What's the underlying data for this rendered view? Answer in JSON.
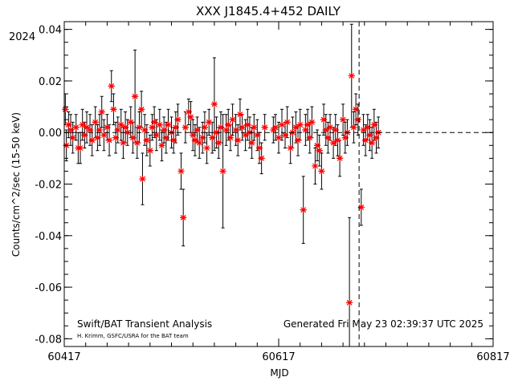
{
  "chart_data": {
    "type": "scatter",
    "title": "XXX J1845.4+452 DAILY",
    "xlabel": "MJD",
    "ylabel": "Counts/cm^2/sec (15-50 keV)",
    "year_label": "2024",
    "xlim": [
      60417,
      60817
    ],
    "ylim": [
      -0.083,
      0.043
    ],
    "xticks_major": [
      60417,
      60617,
      60817
    ],
    "xticks_major_labels": [
      "60417",
      "60617",
      "60817"
    ],
    "yticks_major": [
      -0.08,
      -0.06,
      -0.04,
      -0.02,
      0.0,
      0.02,
      0.04
    ],
    "yticks_major_labels": [
      "-0.08",
      "-0.06",
      "-0.04",
      "-0.02",
      "0.00",
      "0.02",
      "0.04"
    ],
    "reference_line_y": 0.0,
    "marker_line_x": 60692,
    "grid": false,
    "legend": "none",
    "colors": {
      "points": "#ff0000",
      "errorbars": "#000000",
      "axes": "#000000"
    },
    "footer_left": "Swift/BAT Transient Analysis",
    "footer_credit": "H. Krimm, GSFC/USRA for the BAT team",
    "footer_right": "Generated Fri May 23 02:39:37 UTC 2025",
    "points": [
      {
        "x": 60418,
        "y": 0.009,
        "err": 0.006
      },
      {
        "x": 60419,
        "y": -0.005,
        "err": 0.006
      },
      {
        "x": 60421,
        "y": 0.003,
        "err": 0.005
      },
      {
        "x": 60423,
        "y": 0.001,
        "err": 0.006
      },
      {
        "x": 60425,
        "y": -0.002,
        "err": 0.006
      },
      {
        "x": 60428,
        "y": 0.002,
        "err": 0.005
      },
      {
        "x": 60430,
        "y": -0.006,
        "err": 0.006
      },
      {
        "x": 60432,
        "y": -0.006,
        "err": 0.006
      },
      {
        "x": 60434,
        "y": 0.003,
        "err": 0.006
      },
      {
        "x": 60436,
        "y": -0.001,
        "err": 0.005
      },
      {
        "x": 60438,
        "y": 0.002,
        "err": 0.006
      },
      {
        "x": 60441,
        "y": 0.001,
        "err": 0.006
      },
      {
        "x": 60443,
        "y": -0.003,
        "err": 0.006
      },
      {
        "x": 60446,
        "y": 0.004,
        "err": 0.006
      },
      {
        "x": 60448,
        "y": -0.002,
        "err": 0.005
      },
      {
        "x": 60450,
        "y": 0.001,
        "err": 0.006
      },
      {
        "x": 60452,
        "y": 0.008,
        "err": 0.006
      },
      {
        "x": 60454,
        "y": -0.001,
        "err": 0.006
      },
      {
        "x": 60457,
        "y": 0.002,
        "err": 0.005
      },
      {
        "x": 60459,
        "y": -0.003,
        "err": 0.006
      },
      {
        "x": 60461,
        "y": 0.018,
        "err": 0.006
      },
      {
        "x": 60463,
        "y": 0.009,
        "err": 0.006
      },
      {
        "x": 60465,
        "y": -0.002,
        "err": 0.006
      },
      {
        "x": 60467,
        "y": 0.001,
        "err": 0.005
      },
      {
        "x": 60470,
        "y": 0.003,
        "err": 0.006
      },
      {
        "x": 60472,
        "y": -0.004,
        "err": 0.006
      },
      {
        "x": 60474,
        "y": 0.002,
        "err": 0.006
      },
      {
        "x": 60476,
        "y": 0.0,
        "err": 0.005
      },
      {
        "x": 60479,
        "y": 0.004,
        "err": 0.006
      },
      {
        "x": 60481,
        "y": -0.002,
        "err": 0.006
      },
      {
        "x": 60483,
        "y": 0.014,
        "err": 0.018
      },
      {
        "x": 60485,
        "y": -0.004,
        "err": 0.006
      },
      {
        "x": 60487,
        "y": 0.002,
        "err": 0.006
      },
      {
        "x": 60489,
        "y": 0.009,
        "err": 0.007
      },
      {
        "x": 60490,
        "y": -0.018,
        "err": 0.01
      },
      {
        "x": 60492,
        "y": 0.001,
        "err": 0.006
      },
      {
        "x": 60494,
        "y": -0.003,
        "err": 0.006
      },
      {
        "x": 60497,
        "y": -0.007,
        "err": 0.006
      },
      {
        "x": 60499,
        "y": 0.002,
        "err": 0.005
      },
      {
        "x": 60501,
        "y": 0.004,
        "err": 0.006
      },
      {
        "x": 60503,
        "y": -0.001,
        "err": 0.006
      },
      {
        "x": 60506,
        "y": 0.003,
        "err": 0.006
      },
      {
        "x": 60508,
        "y": -0.005,
        "err": 0.006
      },
      {
        "x": 60510,
        "y": 0.001,
        "err": 0.005
      },
      {
        "x": 60512,
        "y": -0.002,
        "err": 0.006
      },
      {
        "x": 60514,
        "y": 0.003,
        "err": 0.006
      },
      {
        "x": 60517,
        "y": 0.0,
        "err": 0.006
      },
      {
        "x": 60519,
        "y": -0.003,
        "err": 0.005
      },
      {
        "x": 60521,
        "y": 0.002,
        "err": 0.006
      },
      {
        "x": 60523,
        "y": 0.005,
        "err": 0.006
      },
      {
        "x": 60526,
        "y": -0.015,
        "err": 0.007
      },
      {
        "x": 60528,
        "y": -0.033,
        "err": 0.011
      },
      {
        "x": 60530,
        "y": 0.002,
        "err": 0.006
      },
      {
        "x": 60533,
        "y": 0.008,
        "err": 0.005
      },
      {
        "x": 60535,
        "y": 0.006,
        "err": 0.006
      },
      {
        "x": 60537,
        "y": -0.001,
        "err": 0.006
      },
      {
        "x": 60539,
        "y": -0.003,
        "err": 0.006
      },
      {
        "x": 60541,
        "y": 0.001,
        "err": 0.005
      },
      {
        "x": 60543,
        "y": -0.004,
        "err": 0.006
      },
      {
        "x": 60546,
        "y": -0.002,
        "err": 0.006
      },
      {
        "x": 60548,
        "y": 0.002,
        "err": 0.006
      },
      {
        "x": 60550,
        "y": -0.006,
        "err": 0.006
      },
      {
        "x": 60552,
        "y": 0.004,
        "err": 0.005
      },
      {
        "x": 60555,
        "y": -0.002,
        "err": 0.006
      },
      {
        "x": 60557,
        "y": 0.011,
        "err": 0.018
      },
      {
        "x": 60559,
        "y": 0.0,
        "err": 0.006
      },
      {
        "x": 60561,
        "y": -0.004,
        "err": 0.006
      },
      {
        "x": 60563,
        "y": 0.002,
        "err": 0.006
      },
      {
        "x": 60565,
        "y": -0.015,
        "err": 0.022
      },
      {
        "x": 60568,
        "y": 0.001,
        "err": 0.006
      },
      {
        "x": 60570,
        "y": 0.003,
        "err": 0.006
      },
      {
        "x": 60572,
        "y": -0.002,
        "err": 0.005
      },
      {
        "x": 60574,
        "y": 0.005,
        "err": 0.006
      },
      {
        "x": 60577,
        "y": 0.001,
        "err": 0.006
      },
      {
        "x": 60579,
        "y": -0.003,
        "err": 0.006
      },
      {
        "x": 60581,
        "y": 0.007,
        "err": 0.006
      },
      {
        "x": 60583,
        "y": 0.002,
        "err": 0.005
      },
      {
        "x": 60586,
        "y": -0.001,
        "err": 0.006
      },
      {
        "x": 60588,
        "y": 0.003,
        "err": 0.006
      },
      {
        "x": 60590,
        "y": 0.0,
        "err": 0.006
      },
      {
        "x": 60592,
        "y": -0.004,
        "err": 0.006
      },
      {
        "x": 60594,
        "y": 0.002,
        "err": 0.005
      },
      {
        "x": 60597,
        "y": -0.001,
        "err": 0.006
      },
      {
        "x": 60599,
        "y": -0.006,
        "err": 0.006
      },
      {
        "x": 60601,
        "y": -0.01,
        "err": 0.006
      },
      {
        "x": 60604,
        "y": 0.002,
        "err": 0.005
      },
      {
        "x": 60612,
        "y": 0.001,
        "err": 0.005
      },
      {
        "x": 60614,
        "y": 0.002,
        "err": 0.005
      },
      {
        "x": 60617,
        "y": -0.002,
        "err": 0.006
      },
      {
        "x": 60620,
        "y": 0.003,
        "err": 0.006
      },
      {
        "x": 60623,
        "y": -0.001,
        "err": 0.005
      },
      {
        "x": 60625,
        "y": 0.004,
        "err": 0.006
      },
      {
        "x": 60628,
        "y": -0.006,
        "err": 0.006
      },
      {
        "x": 60630,
        "y": 0.0,
        "err": 0.006
      },
      {
        "x": 60633,
        "y": 0.002,
        "err": 0.006
      },
      {
        "x": 60635,
        "y": -0.003,
        "err": 0.006
      },
      {
        "x": 60637,
        "y": 0.003,
        "err": 0.006
      },
      {
        "x": 60640,
        "y": -0.03,
        "err": 0.013
      },
      {
        "x": 60642,
        "y": 0.001,
        "err": 0.006
      },
      {
        "x": 60644,
        "y": 0.003,
        "err": 0.006
      },
      {
        "x": 60646,
        "y": -0.002,
        "err": 0.006
      },
      {
        "x": 60648,
        "y": 0.004,
        "err": 0.006
      },
      {
        "x": 60651,
        "y": -0.013,
        "err": 0.007
      },
      {
        "x": 60653,
        "y": -0.005,
        "err": 0.006
      },
      {
        "x": 60655,
        "y": -0.007,
        "err": 0.006
      },
      {
        "x": 60657,
        "y": -0.015,
        "err": 0.007
      },
      {
        "x": 60659,
        "y": 0.005,
        "err": 0.006
      },
      {
        "x": 60661,
        "y": 0.001,
        "err": 0.006
      },
      {
        "x": 60663,
        "y": -0.002,
        "err": 0.006
      },
      {
        "x": 60665,
        "y": 0.002,
        "err": 0.005
      },
      {
        "x": 60668,
        "y": -0.004,
        "err": 0.006
      },
      {
        "x": 60670,
        "y": 0.001,
        "err": 0.006
      },
      {
        "x": 60672,
        "y": -0.003,
        "err": 0.006
      },
      {
        "x": 60674,
        "y": -0.01,
        "err": 0.007
      },
      {
        "x": 60677,
        "y": 0.005,
        "err": 0.006
      },
      {
        "x": 60679,
        "y": -0.002,
        "err": 0.006
      },
      {
        "x": 60681,
        "y": 0.0,
        "err": 0.005
      },
      {
        "x": 60683,
        "y": -0.066,
        "err": 0.033
      },
      {
        "x": 60685,
        "y": 0.022,
        "err": 0.02
      },
      {
        "x": 60687,
        "y": 0.002,
        "err": 0.006
      },
      {
        "x": 60689,
        "y": 0.009,
        "err": 0.006
      },
      {
        "x": 60691,
        "y": 0.005,
        "err": 0.006
      },
      {
        "x": 60694,
        "y": -0.029,
        "err": 0.007
      },
      {
        "x": 60696,
        "y": 0.001,
        "err": 0.006
      },
      {
        "x": 60698,
        "y": -0.003,
        "err": 0.006
      },
      {
        "x": 60700,
        "y": 0.002,
        "err": 0.005
      },
      {
        "x": 60702,
        "y": -0.001,
        "err": 0.006
      },
      {
        "x": 60704,
        "y": -0.004,
        "err": 0.006
      },
      {
        "x": 60706,
        "y": 0.003,
        "err": 0.006
      },
      {
        "x": 60708,
        "y": -0.002,
        "err": 0.006
      },
      {
        "x": 60710,
        "y": 0.0,
        "err": 0.006
      }
    ]
  }
}
